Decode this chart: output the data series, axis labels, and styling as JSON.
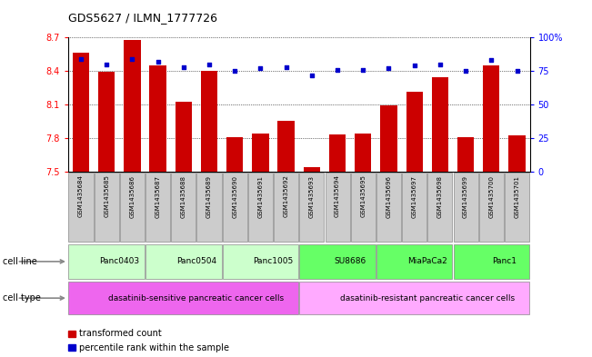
{
  "title": "GDS5627 / ILMN_1777726",
  "samples": [
    "GSM1435684",
    "GSM1435685",
    "GSM1435686",
    "GSM1435687",
    "GSM1435688",
    "GSM1435689",
    "GSM1435690",
    "GSM1435691",
    "GSM1435692",
    "GSM1435693",
    "GSM1435694",
    "GSM1435695",
    "GSM1435696",
    "GSM1435697",
    "GSM1435698",
    "GSM1435699",
    "GSM1435700",
    "GSM1435701"
  ],
  "bar_values": [
    8.56,
    8.39,
    8.68,
    8.45,
    8.12,
    8.4,
    7.81,
    7.84,
    7.95,
    7.54,
    7.83,
    7.84,
    8.09,
    8.21,
    8.34,
    7.81,
    8.45,
    7.82
  ],
  "dot_values": [
    84,
    80,
    84,
    82,
    78,
    80,
    75,
    77,
    78,
    72,
    76,
    76,
    77,
    79,
    80,
    75,
    83,
    75
  ],
  "ylim_left": [
    7.5,
    8.7
  ],
  "ylim_right": [
    0,
    100
  ],
  "yticks_left": [
    7.5,
    7.8,
    8.1,
    8.4,
    8.7
  ],
  "yticks_right": [
    0,
    25,
    50,
    75,
    100
  ],
  "ytick_labels_right": [
    "0",
    "25",
    "50",
    "75",
    "100%"
  ],
  "bar_color": "#cc0000",
  "dot_color": "#0000cc",
  "grid_color": "#000000",
  "cell_lines": [
    {
      "label": "Panc0403",
      "start": 0,
      "end": 3
    },
    {
      "label": "Panc0504",
      "start": 3,
      "end": 6
    },
    {
      "label": "Panc1005",
      "start": 6,
      "end": 9
    },
    {
      "label": "SU8686",
      "start": 9,
      "end": 12
    },
    {
      "label": "MiaPaCa2",
      "start": 12,
      "end": 15
    },
    {
      "label": "Panc1",
      "start": 15,
      "end": 18
    }
  ],
  "cell_line_colors": [
    "#ccffcc",
    "#ccffcc",
    "#ccffcc",
    "#66ff66",
    "#66ff66",
    "#66ff66"
  ],
  "cell_types": [
    {
      "label": "dasatinib-sensitive pancreatic cancer cells",
      "start": 0,
      "end": 9,
      "color": "#ee66ee"
    },
    {
      "label": "dasatinib-resistant pancreatic cancer cells",
      "start": 9,
      "end": 18,
      "color": "#ffaaff"
    }
  ],
  "legend_bar_label": "transformed count",
  "legend_dot_label": "percentile rank within the sample",
  "cell_line_row_label": "cell line",
  "cell_type_row_label": "cell type",
  "sample_box_color": "#cccccc",
  "sample_box_edge": "#888888"
}
